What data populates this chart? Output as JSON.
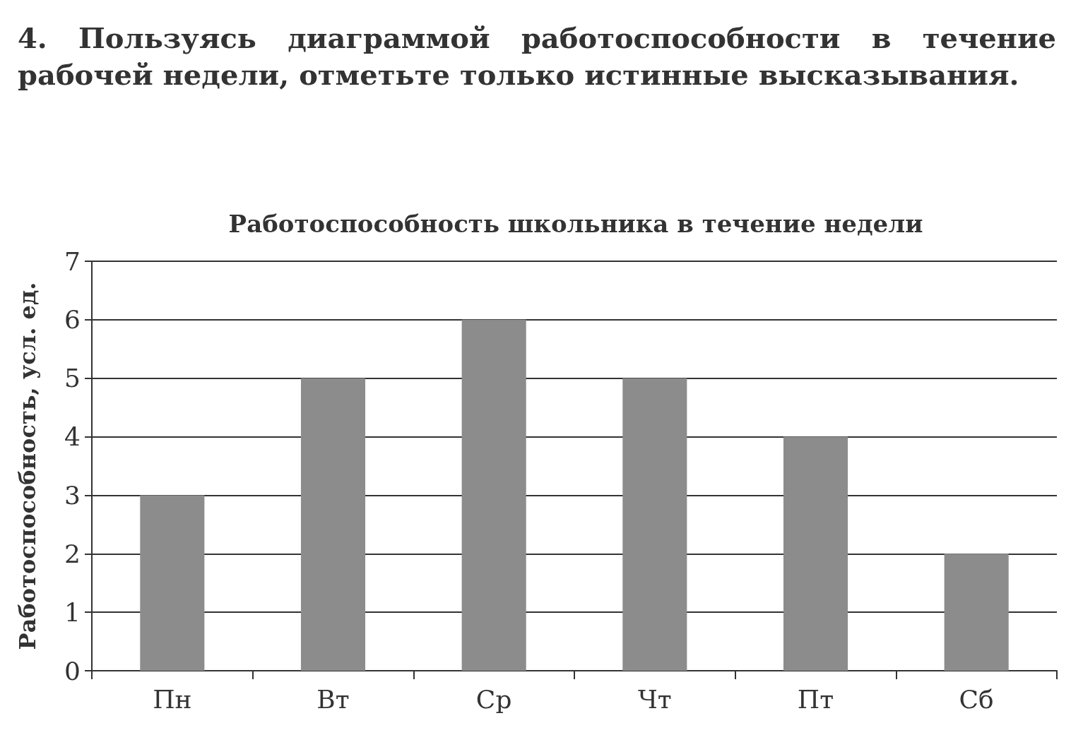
{
  "chart_data": {
    "type": "bar",
    "title": "Работоспособность школьника в течение недели",
    "annotations": [
      "4. Пользуясь диаграммой работоспособности в течение рабочей недели, отметьте только истинные высказывания."
    ],
    "ylabel": "Работоспособность, усл. ед.",
    "categories": [
      "Пн",
      "Вт",
      "Ср",
      "Чт",
      "Пт",
      "Сб"
    ],
    "values": [
      3,
      5,
      6,
      5,
      4,
      2
    ],
    "color": "#8c8c8c",
    "ylim": [
      0,
      7
    ],
    "yticks": [
      0,
      1,
      2,
      3,
      4,
      5,
      6,
      7
    ],
    "grid": "y"
  }
}
